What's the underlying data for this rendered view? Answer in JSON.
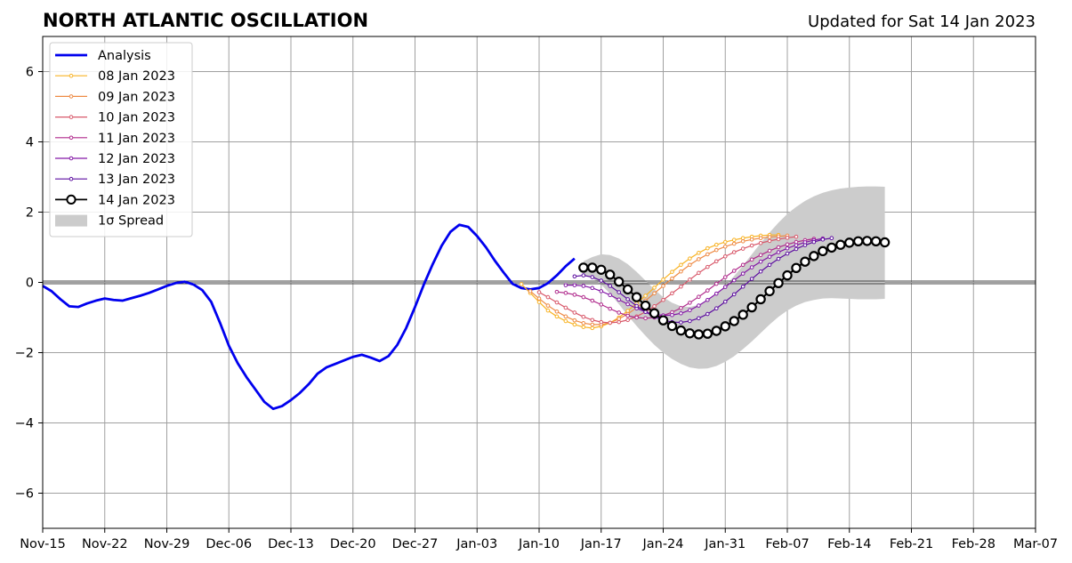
{
  "chart_data": {
    "type": "line",
    "title": "NORTH ATLANTIC OSCILLATION",
    "subtitle": "Updated for Sat 14 Jan 2023",
    "xlabel": "",
    "ylabel": "",
    "xlim": [
      "2022-11-15",
      "2023-03-07"
    ],
    "ylim": [
      -7,
      7
    ],
    "x_ticks": [
      "Nov-15",
      "Nov-22",
      "Nov-29",
      "Dec-06",
      "Dec-13",
      "Dec-20",
      "Dec-27",
      "Jan-03",
      "Jan-10",
      "Jan-17",
      "Jan-24",
      "Jan-31",
      "Feb-07",
      "Feb-14",
      "Feb-21",
      "Feb-28",
      "Mar-07"
    ],
    "x_tick_dates": [
      "2022-11-15",
      "2022-11-22",
      "2022-11-29",
      "2022-12-06",
      "2022-12-13",
      "2022-12-20",
      "2022-12-27",
      "2023-01-03",
      "2023-01-10",
      "2023-01-17",
      "2023-01-24",
      "2023-01-31",
      "2023-02-07",
      "2023-02-14",
      "2023-02-21",
      "2023-02-28",
      "2023-03-07"
    ],
    "y_ticks": [
      6,
      4,
      2,
      0,
      -2,
      -4,
      -6
    ],
    "y_tick_labels": [
      "6",
      "4",
      "2",
      "0",
      "−2",
      "−4",
      "−6"
    ],
    "grid": true,
    "legend_position": "top-left",
    "zero_line": 0,
    "analysis": {
      "name": "Analysis",
      "color": "#0000ee",
      "start": "2022-11-15",
      "values": [
        -0.1,
        -0.25,
        -0.48,
        -0.68,
        -0.7,
        -0.6,
        -0.52,
        -0.46,
        -0.5,
        -0.52,
        -0.45,
        -0.38,
        -0.3,
        -0.2,
        -0.1,
        -0.02,
        0.02,
        -0.06,
        -0.22,
        -0.55,
        -1.15,
        -1.8,
        -2.3,
        -2.7,
        -3.05,
        -3.4,
        -3.6,
        -3.52,
        -3.35,
        -3.15,
        -2.9,
        -2.6,
        -2.42,
        -2.32,
        -2.22,
        -2.12,
        -2.06,
        -2.14,
        -2.24,
        -2.1,
        -1.78,
        -1.3,
        -0.7,
        -0.06,
        0.52,
        1.04,
        1.44,
        1.64,
        1.58,
        1.32,
        1.0,
        0.62,
        0.28,
        -0.04,
        -0.16,
        -0.2,
        -0.16,
        -0.02,
        0.2,
        0.46,
        0.68
      ]
    },
    "forecasts": [
      {
        "name": "08 Jan 2023",
        "color": "#f8b325",
        "start": "2023-01-08",
        "values": [
          -0.05,
          -0.3,
          -0.56,
          -0.8,
          -0.97,
          -1.1,
          -1.2,
          -1.27,
          -1.3,
          -1.25,
          -1.15,
          -1.0,
          -0.81,
          -0.6,
          -0.38,
          -0.15,
          0.08,
          0.3,
          0.5,
          0.68,
          0.84,
          0.97,
          1.07,
          1.15,
          1.21,
          1.26,
          1.3,
          1.33,
          1.35,
          1.35
        ]
      },
      {
        "name": "09 Jan 2023",
        "color": "#ee8a44",
        "start": "2023-01-09",
        "values": [
          -0.25,
          -0.46,
          -0.66,
          -0.83,
          -0.97,
          -1.08,
          -1.16,
          -1.2,
          -1.2,
          -1.15,
          -1.04,
          -0.9,
          -0.72,
          -0.52,
          -0.31,
          -0.1,
          0.11,
          0.31,
          0.5,
          0.66,
          0.8,
          0.92,
          1.02,
          1.1,
          1.17,
          1.22,
          1.26,
          1.29,
          1.31,
          1.33
        ]
      },
      {
        "name": "10 Jan 2023",
        "color": "#d8586a",
        "start": "2023-01-10",
        "values": [
          -0.28,
          -0.42,
          -0.57,
          -0.72,
          -0.86,
          -0.98,
          -1.07,
          -1.13,
          -1.15,
          -1.13,
          -1.07,
          -0.97,
          -0.84,
          -0.68,
          -0.5,
          -0.31,
          -0.12,
          0.08,
          0.27,
          0.44,
          0.6,
          0.74,
          0.86,
          0.96,
          1.05,
          1.12,
          1.18,
          1.23,
          1.27,
          1.3
        ]
      },
      {
        "name": "11 Jan 2023",
        "color": "#b02a8c",
        "start": "2023-01-12",
        "values": [
          -0.27,
          -0.3,
          -0.35,
          -0.42,
          -0.52,
          -0.63,
          -0.75,
          -0.86,
          -0.95,
          -1.0,
          -1.02,
          -1.0,
          -0.94,
          -0.85,
          -0.73,
          -0.58,
          -0.41,
          -0.23,
          -0.04,
          0.15,
          0.33,
          0.5,
          0.65,
          0.78,
          0.9,
          1.0,
          1.08,
          1.15,
          1.2,
          1.24
        ]
      },
      {
        "name": "12 Jan 2023",
        "color": "#8418a6",
        "start": "2023-01-13",
        "values": [
          -0.08,
          -0.08,
          -0.1,
          -0.16,
          -0.25,
          -0.36,
          -0.49,
          -0.62,
          -0.74,
          -0.84,
          -0.91,
          -0.94,
          -0.93,
          -0.88,
          -0.79,
          -0.66,
          -0.5,
          -0.32,
          -0.13,
          0.06,
          0.25,
          0.43,
          0.59,
          0.73,
          0.86,
          0.97,
          1.06,
          1.14,
          1.2,
          1.25
        ]
      },
      {
        "name": "13 Jan 2023",
        "color": "#5d0ea0",
        "start": "2023-01-14",
        "values": [
          0.17,
          0.2,
          0.15,
          0.05,
          -0.1,
          -0.28,
          -0.48,
          -0.67,
          -0.84,
          -0.98,
          -1.08,
          -1.13,
          -1.14,
          -1.1,
          -1.02,
          -0.9,
          -0.74,
          -0.55,
          -0.34,
          -0.12,
          0.1,
          0.31,
          0.5,
          0.67,
          0.82,
          0.95,
          1.06,
          1.15,
          1.22,
          1.26
        ]
      },
      {
        "name": "14 Jan 2023",
        "color": "#000000",
        "start": "2023-01-15",
        "values": [
          0.42,
          0.42,
          0.36,
          0.22,
          0.02,
          -0.2,
          -0.42,
          -0.66,
          -0.88,
          -1.08,
          -1.24,
          -1.37,
          -1.45,
          -1.48,
          -1.46,
          -1.38,
          -1.25,
          -1.1,
          -0.92,
          -0.71,
          -0.48,
          -0.25,
          -0.02,
          0.2,
          0.41,
          0.59,
          0.75,
          0.89,
          0.99,
          1.07,
          1.13,
          1.17,
          1.18,
          1.17,
          1.14
        ]
      }
    ],
    "spread": {
      "name": "1σ Spread",
      "color": "#cccccc",
      "start": "2023-01-15",
      "upper": [
        0.6,
        0.72,
        0.8,
        0.78,
        0.68,
        0.52,
        0.3,
        0.05,
        -0.2,
        -0.42,
        -0.58,
        -0.68,
        -0.7,
        -0.64,
        -0.52,
        -0.34,
        -0.1,
        0.18,
        0.48,
        0.8,
        1.12,
        1.42,
        1.7,
        1.95,
        2.15,
        2.32,
        2.45,
        2.55,
        2.62,
        2.67,
        2.7,
        2.72,
        2.73,
        2.73,
        2.72
      ],
      "lower": [
        0.22,
        0.12,
        -0.06,
        -0.32,
        -0.62,
        -0.94,
        -1.24,
        -1.52,
        -1.78,
        -2.0,
        -2.18,
        -2.32,
        -2.42,
        -2.46,
        -2.45,
        -2.38,
        -2.26,
        -2.1,
        -1.9,
        -1.68,
        -1.44,
        -1.2,
        -0.98,
        -0.8,
        -0.66,
        -0.56,
        -0.5,
        -0.46,
        -0.45,
        -0.46,
        -0.47,
        -0.48,
        -0.48,
        -0.48,
        -0.47
      ]
    }
  },
  "legend": {
    "items": [
      {
        "label": "Analysis",
        "color": "#0000ee",
        "kind": "thick-line"
      },
      {
        "label": "08 Jan 2023",
        "color": "#f8b325",
        "kind": "line-dot"
      },
      {
        "label": "09 Jan 2023",
        "color": "#ee8a44",
        "kind": "line-dot"
      },
      {
        "label": "10 Jan 2023",
        "color": "#d8586a",
        "kind": "line-dot"
      },
      {
        "label": "11 Jan 2023",
        "color": "#b02a8c",
        "kind": "line-dot"
      },
      {
        "label": "12 Jan 2023",
        "color": "#8418a6",
        "kind": "line-dot"
      },
      {
        "label": "13 Jan 2023",
        "color": "#5d0ea0",
        "kind": "line-dot"
      },
      {
        "label": "14 Jan 2023",
        "color": "#000000",
        "kind": "line-circle"
      },
      {
        "label": "1σ Spread",
        "color": "#cccccc",
        "kind": "patch"
      }
    ]
  }
}
